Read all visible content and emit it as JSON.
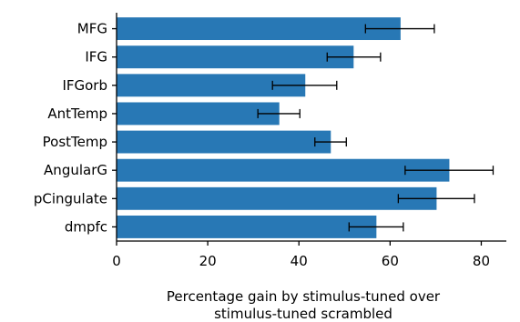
{
  "chart_data": {
    "type": "bar",
    "orientation": "horizontal",
    "categories": [
      "MFG",
      "IFG",
      "IFGorb",
      "AntTemp",
      "PostTemp",
      "AngularG",
      "pCingulate",
      "dmpfc"
    ],
    "values": [
      62.3,
      52.0,
      41.4,
      35.7,
      47.0,
      73.0,
      70.2,
      57.0
    ],
    "error_low": [
      54.6,
      46.2,
      34.2,
      31.0,
      43.5,
      63.3,
      61.8,
      51.0
    ],
    "error_high": [
      69.7,
      57.9,
      48.3,
      40.2,
      50.4,
      82.6,
      78.5,
      62.9
    ],
    "xlabel": [
      "Percentage gain by stimulus-tuned over",
      "stimulus-tuned scrambled"
    ],
    "xticks": [
      "0",
      "20",
      "40",
      "60",
      "80"
    ],
    "xlim": [
      0,
      85.5
    ],
    "bar_color": "#2878b5",
    "error_color": "#000000",
    "grid": false
  }
}
